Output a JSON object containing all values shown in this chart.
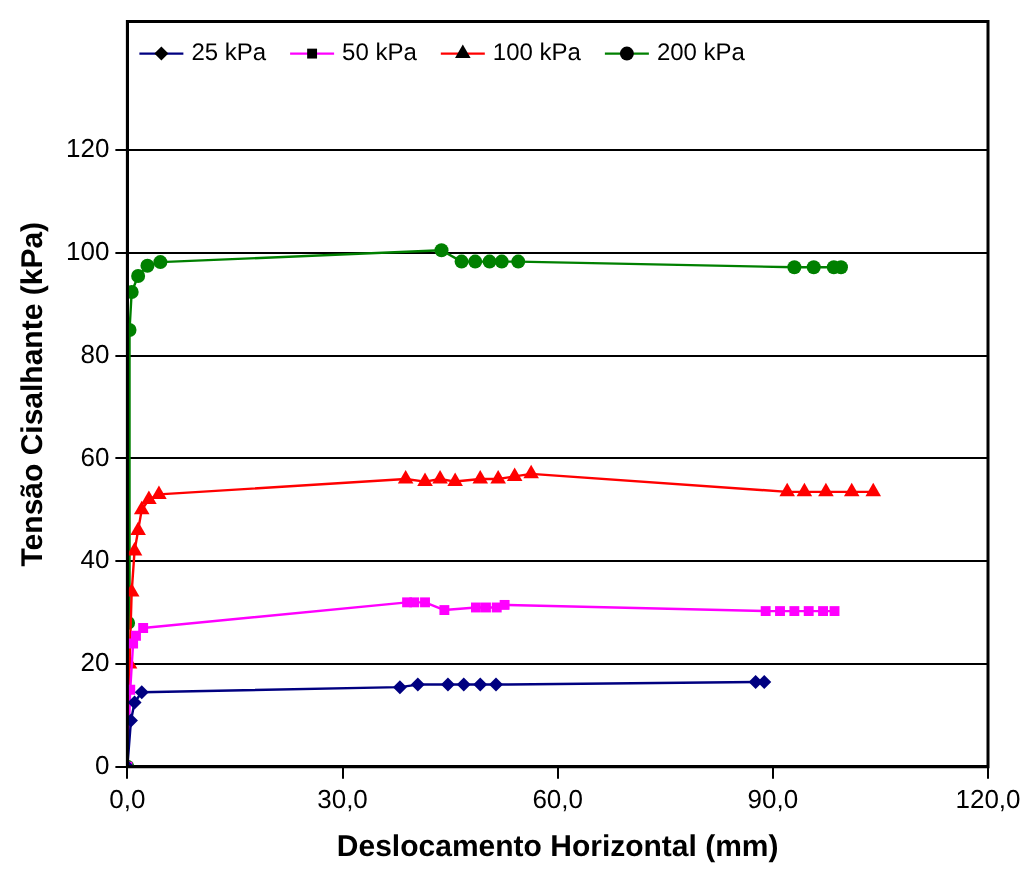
{
  "chart_data": {
    "type": "line",
    "xlabel": "Deslocamento Horizontal (mm)",
    "ylabel": "Tensão Cisalhante (kPa)",
    "xlim": [
      0,
      120
    ],
    "xticks": [
      {
        "value": 0,
        "label": "0,0"
      },
      {
        "value": 30,
        "label": "30,0"
      },
      {
        "value": 60,
        "label": "60,0"
      },
      {
        "value": 90,
        "label": "90,0"
      },
      {
        "value": 120,
        "label": "120,0"
      }
    ],
    "ylim": [
      0,
      145
    ],
    "yticks": [
      0,
      20,
      40,
      60,
      80,
      100,
      120
    ],
    "grid": "y",
    "legend": "top",
    "line_style": "solid",
    "series": [
      {
        "name": "25 kPa",
        "color": "#000080",
        "marker": "diamond",
        "x": [
          0,
          0.5,
          1,
          2,
          38,
          40.5,
          44.7,
          46.9,
          49.2,
          51.4,
          87.6,
          88.8
        ],
        "values": [
          0,
          9,
          12.5,
          14.5,
          15.5,
          16,
          16,
          16,
          16,
          16,
          16.5,
          16.5
        ]
      },
      {
        "name": "50 kPa",
        "color": "#ff00ff",
        "marker": "square",
        "x": [
          0,
          0.4,
          0.8,
          1.2,
          2.2,
          39,
          40,
          41.5,
          44.2,
          48.6,
          50,
          51.5,
          52.6,
          89,
          91,
          93,
          95,
          97,
          98.6
        ],
        "values": [
          0,
          15,
          24,
          25.5,
          27,
          32,
          32,
          32,
          30.5,
          31,
          31,
          31,
          31.5,
          30.3,
          30.3,
          30.3,
          30.3,
          30.3,
          30.3
        ]
      },
      {
        "name": "100 kPa",
        "color": "#ff0000",
        "marker": "triangle",
        "x": [
          0,
          0.3,
          0.6,
          1,
          1.5,
          2,
          3,
          4.4,
          38.8,
          41.5,
          43.6,
          45.7,
          49.2,
          51.7,
          54,
          56.3,
          92,
          94.4,
          97.4,
          101,
          104
        ],
        "values": [
          0,
          20,
          34,
          42,
          46,
          50,
          52,
          53,
          56,
          55.5,
          56,
          55.5,
          56,
          56,
          56.5,
          57,
          53.5,
          53.5,
          53.5,
          53.5,
          53.5
        ]
      },
      {
        "name": "200 kPa",
        "color": "#008000",
        "marker": "circle",
        "x": [
          0,
          0.1,
          0.3,
          0.6,
          1.5,
          2.8,
          4.6,
          43.8,
          46.6,
          48.5,
          50.5,
          52.2,
          54.5,
          93,
          95.7,
          98.5,
          99.5
        ],
        "values": [
          0,
          28,
          85,
          92.4,
          95.5,
          97.5,
          98.2,
          100.5,
          98.3,
          98.3,
          98.3,
          98.3,
          98.3,
          97.2,
          97.2,
          97.2,
          97.2
        ]
      }
    ]
  }
}
